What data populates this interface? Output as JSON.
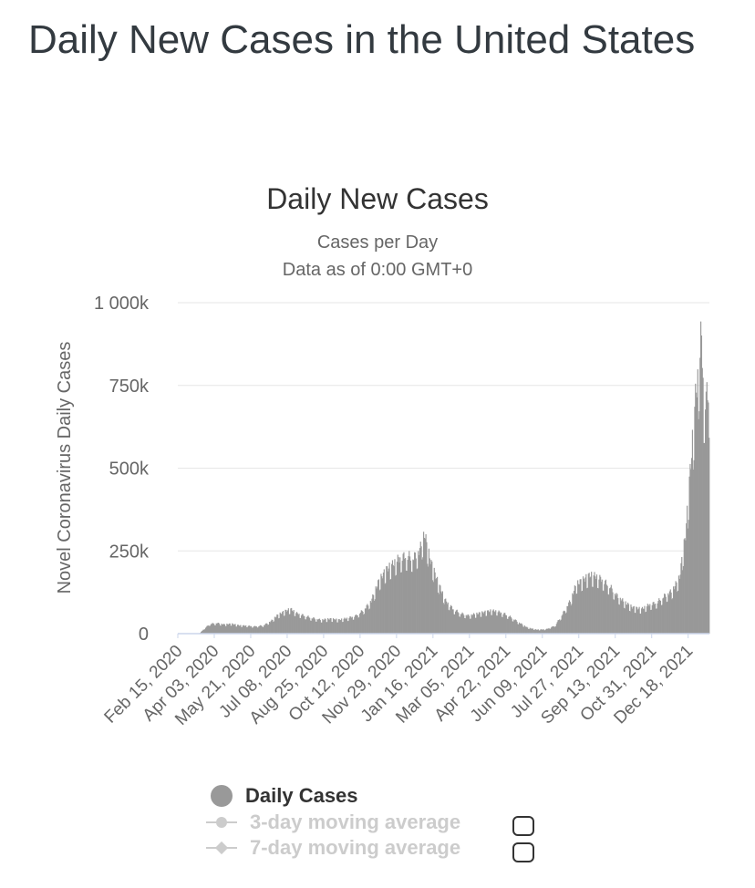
{
  "page": {
    "title": "Daily New Cases in the United States"
  },
  "chart_data": {
    "type": "bar",
    "title": "Daily New Cases",
    "subtitle_line1": "Cases per Day",
    "subtitle_line2": "Data as of 0:00 GMT+0",
    "ylabel": "Novel Coronavirus Daily Cases",
    "xlabel": "",
    "ylim": [
      0,
      1000000
    ],
    "y_ticks": [
      0,
      250000,
      500000,
      750000,
      1000000
    ],
    "y_tick_labels": [
      "0",
      "250k",
      "500k",
      "750k",
      "1 000k"
    ],
    "x_tick_labels": [
      "Feb 15, 2020",
      "Apr 03, 2020",
      "May 21, 2020",
      "Jul 08, 2020",
      "Aug 25, 2020",
      "Oct 12, 2020",
      "Nov 29, 2020",
      "Jan 16, 2021",
      "Mar 05, 2021",
      "Apr 22, 2021",
      "Jun 09, 2021",
      "Jul 27, 2021",
      "Sep 13, 2021",
      "Oct 31, 2021",
      "Dec 18, 2021"
    ],
    "x_tick_day_index": [
      0,
      48,
      96,
      144,
      192,
      240,
      288,
      336,
      384,
      432,
      480,
      528,
      576,
      624,
      672
    ],
    "start_date": "Feb 15, 2020",
    "total_days": 700,
    "bar_color": "#999999",
    "grid": true,
    "series": [
      {
        "name": "Daily Cases",
        "anchors": [
          [
            0,
            0
          ],
          [
            28,
            0
          ],
          [
            34,
            15000
          ],
          [
            42,
            30000
          ],
          [
            52,
            32000
          ],
          [
            60,
            28000
          ],
          [
            70,
            30000
          ],
          [
            80,
            25000
          ],
          [
            90,
            24000
          ],
          [
            100,
            22000
          ],
          [
            112,
            25000
          ],
          [
            122,
            38000
          ],
          [
            130,
            55000
          ],
          [
            140,
            68000
          ],
          [
            148,
            75000
          ],
          [
            156,
            62000
          ],
          [
            166,
            55000
          ],
          [
            176,
            48000
          ],
          [
            188,
            42000
          ],
          [
            200,
            45000
          ],
          [
            212,
            42000
          ],
          [
            224,
            48000
          ],
          [
            234,
            55000
          ],
          [
            244,
            72000
          ],
          [
            254,
            100000
          ],
          [
            264,
            160000
          ],
          [
            274,
            195000
          ],
          [
            282,
            210000
          ],
          [
            290,
            228000
          ],
          [
            300,
            238000
          ],
          [
            310,
            232000
          ],
          [
            318,
            255000
          ],
          [
            324,
            305000
          ],
          [
            332,
            222000
          ],
          [
            342,
            155000
          ],
          [
            352,
            100000
          ],
          [
            362,
            75000
          ],
          [
            372,
            62000
          ],
          [
            382,
            55000
          ],
          [
            392,
            60000
          ],
          [
            402,
            65000
          ],
          [
            412,
            70000
          ],
          [
            420,
            68000
          ],
          [
            430,
            60000
          ],
          [
            438,
            50000
          ],
          [
            448,
            35000
          ],
          [
            460,
            18000
          ],
          [
            472,
            12000
          ],
          [
            484,
            13000
          ],
          [
            496,
            24000
          ],
          [
            506,
            60000
          ],
          [
            516,
            100000
          ],
          [
            524,
            150000
          ],
          [
            534,
            165000
          ],
          [
            542,
            178000
          ],
          [
            550,
            175000
          ],
          [
            558,
            165000
          ],
          [
            568,
            145000
          ],
          [
            578,
            115000
          ],
          [
            588,
            95000
          ],
          [
            598,
            80000
          ],
          [
            610,
            75000
          ],
          [
            620,
            88000
          ],
          [
            630,
            95000
          ],
          [
            640,
            115000
          ],
          [
            650,
            130000
          ],
          [
            660,
            170000
          ],
          [
            664,
            240000
          ],
          [
            668,
            300000
          ],
          [
            672,
            430000
          ],
          [
            676,
            550000
          ],
          [
            680,
            690000
          ],
          [
            684,
            780000
          ],
          [
            688,
            900000
          ],
          [
            690,
            850000
          ],
          [
            692,
            720000
          ],
          [
            696,
            720000
          ],
          [
            699,
            740000
          ]
        ]
      }
    ]
  },
  "legend": {
    "items": [
      {
        "label": "Daily Cases",
        "active": true
      },
      {
        "label": "3-day moving average",
        "active": false
      },
      {
        "label": "7-day moving average",
        "active": false
      }
    ]
  }
}
